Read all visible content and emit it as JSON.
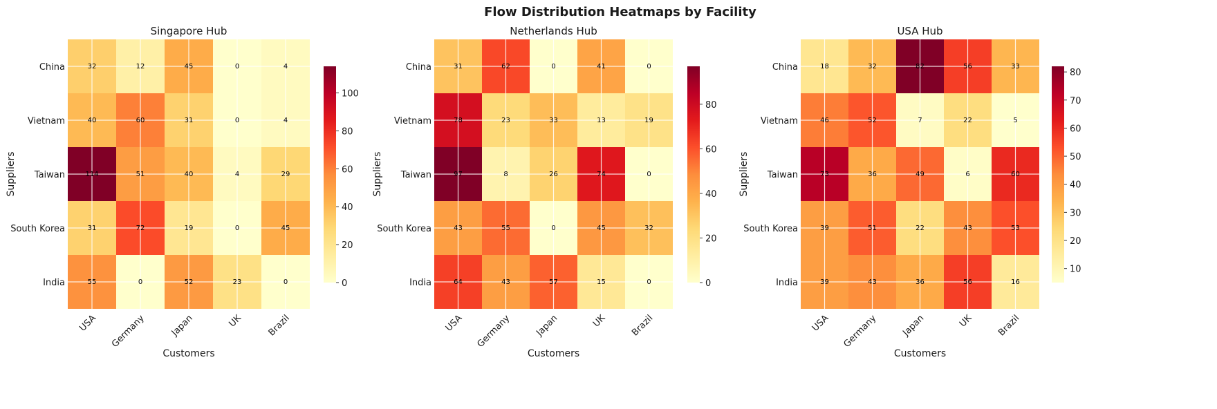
{
  "figure_title": "Flow Distribution Heatmaps by Facility",
  "colormap": [
    "#ffffcc",
    "#ffeda0",
    "#fed976",
    "#feb24c",
    "#fd8d3c",
    "#fc4e2a",
    "#e31a1c",
    "#bd0026",
    "#800026"
  ],
  "chart_data": [
    {
      "type": "heatmap",
      "title": "Singapore Hub",
      "xlabel": "Customers",
      "ylabel": "Suppliers",
      "x": [
        "USA",
        "Germany",
        "Japan",
        "UK",
        "Brazil"
      ],
      "y": [
        "China",
        "Vietnam",
        "Taiwan",
        "South Korea",
        "India"
      ],
      "values": [
        [
          32,
          12,
          45,
          0,
          4
        ],
        [
          40,
          60,
          31,
          0,
          4
        ],
        [
          114,
          51,
          40,
          4,
          29
        ],
        [
          31,
          72,
          19,
          0,
          45
        ],
        [
          55,
          0,
          52,
          23,
          0
        ]
      ],
      "vmin": 0,
      "vmax": 114,
      "colorbar_ticks": [
        0,
        20,
        40,
        60,
        80,
        100
      ]
    },
    {
      "type": "heatmap",
      "title": "Netherlands Hub",
      "xlabel": "Customers",
      "ylabel": "Suppliers",
      "x": [
        "USA",
        "Germany",
        "Japan",
        "UK",
        "Brazil"
      ],
      "y": [
        "China",
        "Vietnam",
        "Taiwan",
        "South Korea",
        "India"
      ],
      "values": [
        [
          31,
          62,
          0,
          41,
          0
        ],
        [
          78,
          23,
          33,
          13,
          19
        ],
        [
          97,
          8,
          26,
          74,
          0
        ],
        [
          43,
          55,
          0,
          45,
          32
        ],
        [
          64,
          43,
          57,
          15,
          0
        ]
      ],
      "vmin": 0,
      "vmax": 97,
      "colorbar_ticks": [
        0,
        20,
        40,
        60,
        80
      ]
    },
    {
      "type": "heatmap",
      "title": "USA Hub",
      "xlabel": "Customers",
      "ylabel": "Suppliers",
      "x": [
        "USA",
        "Germany",
        "Japan",
        "UK",
        "Brazil"
      ],
      "y": [
        "China",
        "Vietnam",
        "Taiwan",
        "South Korea",
        "India"
      ],
      "values": [
        [
          18,
          32,
          82,
          56,
          33
        ],
        [
          46,
          52,
          7,
          22,
          5
        ],
        [
          73,
          36,
          49,
          6,
          60
        ],
        [
          39,
          51,
          22,
          43,
          53
        ],
        [
          39,
          43,
          36,
          56,
          16
        ]
      ],
      "vmin": 5,
      "vmax": 82,
      "colorbar_ticks": [
        10,
        20,
        30,
        40,
        50,
        60,
        70,
        80
      ]
    }
  ]
}
